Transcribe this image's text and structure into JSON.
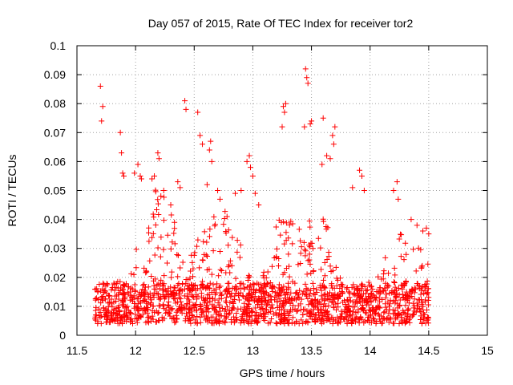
{
  "chart_data": {
    "type": "scatter",
    "title": "Day 057 of 2015, Rate Of TEC Index for receiver tor2",
    "xlabel": "GPS time / hours",
    "ylabel": "ROTI / TECUs",
    "xlim": [
      11.5,
      15
    ],
    "ylim": [
      0,
      0.1
    ],
    "grid": true,
    "marker": "plus",
    "color": "#ff0000",
    "x_ticks": [
      11.5,
      12,
      12.5,
      13,
      13.5,
      14,
      14.5,
      15
    ],
    "x_tick_labels": [
      "11.5",
      "12",
      "12.5",
      "13",
      "13.5",
      "14",
      "14.5",
      "15"
    ],
    "y_ticks": [
      0,
      0.01,
      0.02,
      0.03,
      0.04,
      0.05,
      0.06,
      0.07,
      0.08,
      0.09,
      0.1
    ],
    "y_tick_labels": [
      "0",
      "0.01",
      "0.02",
      "0.03",
      "0.04",
      "0.05",
      "0.06",
      "0.07",
      "0.08",
      "0.09",
      "0.1"
    ],
    "series": [
      {
        "name": "ROTI",
        "points": [
          [
            11.7,
            0.086
          ],
          [
            11.72,
            0.079
          ],
          [
            11.71,
            0.074
          ],
          [
            11.87,
            0.07
          ],
          [
            11.88,
            0.063
          ],
          [
            11.89,
            0.056
          ],
          [
            11.9,
            0.055
          ],
          [
            11.99,
            0.056
          ],
          [
            12.02,
            0.059
          ],
          [
            12.04,
            0.055
          ],
          [
            12.05,
            0.054
          ],
          [
            12.19,
            0.063
          ],
          [
            12.2,
            0.061
          ],
          [
            12.14,
            0.054
          ],
          [
            12.16,
            0.055
          ],
          [
            12.24,
            0.05
          ],
          [
            12.3,
            0.045
          ],
          [
            12.36,
            0.053
          ],
          [
            12.38,
            0.051
          ],
          [
            12.42,
            0.081
          ],
          [
            12.43,
            0.078
          ],
          [
            12.53,
            0.077
          ],
          [
            12.55,
            0.069
          ],
          [
            12.57,
            0.066
          ],
          [
            12.61,
            0.052
          ],
          [
            12.64,
            0.067
          ],
          [
            12.63,
            0.064
          ],
          [
            12.65,
            0.06
          ],
          [
            12.7,
            0.05
          ],
          [
            12.72,
            0.047
          ],
          [
            12.78,
            0.041
          ],
          [
            12.85,
            0.049
          ],
          [
            12.9,
            0.05
          ],
          [
            12.95,
            0.06
          ],
          [
            12.97,
            0.062
          ],
          [
            12.98,
            0.058
          ],
          [
            13.0,
            0.055
          ],
          [
            13.02,
            0.049
          ],
          [
            13.05,
            0.045
          ],
          [
            13.26,
            0.079
          ],
          [
            13.28,
            0.08
          ],
          [
            13.25,
            0.072
          ],
          [
            13.27,
            0.077
          ],
          [
            13.45,
            0.092
          ],
          [
            13.46,
            0.089
          ],
          [
            13.47,
            0.087
          ],
          [
            13.44,
            0.072
          ],
          [
            13.49,
            0.073
          ],
          [
            13.5,
            0.074
          ],
          [
            13.6,
            0.075
          ],
          [
            13.59,
            0.059
          ],
          [
            13.63,
            0.062
          ],
          [
            13.7,
            0.072
          ],
          [
            13.68,
            0.069
          ],
          [
            13.69,
            0.066
          ],
          [
            13.66,
            0.061
          ],
          [
            13.85,
            0.051
          ],
          [
            13.91,
            0.057
          ],
          [
            13.93,
            0.055
          ],
          [
            13.95,
            0.05
          ],
          [
            14.2,
            0.05
          ],
          [
            14.23,
            0.053
          ],
          [
            14.24,
            0.047
          ],
          [
            14.35,
            0.04
          ],
          [
            14.4,
            0.038
          ],
          [
            14.45,
            0.036
          ],
          [
            14.48,
            0.037
          ],
          [
            14.5,
            0.035
          ]
        ]
      }
    ]
  }
}
